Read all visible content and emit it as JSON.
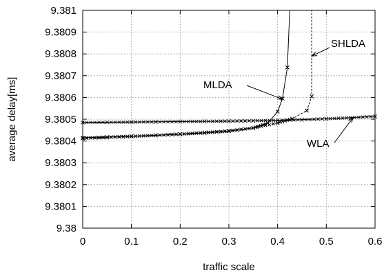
{
  "chart_data": {
    "type": "line",
    "title": "",
    "xlabel": "traffic scale",
    "ylabel": "average delay[ms]",
    "xlim": [
      0,
      0.6
    ],
    "ylim": [
      9.38,
      9.381
    ],
    "x_ticks": [
      0,
      0.1,
      0.2,
      0.3,
      0.4,
      0.5,
      0.6
    ],
    "x_tick_labels": [
      "0",
      "0.1",
      "0.2",
      "0.3",
      "0.4",
      "0.5",
      "0.6"
    ],
    "y_ticks": [
      9.38,
      9.3801,
      9.3802,
      9.3803,
      9.3804,
      9.3805,
      9.3806,
      9.3807,
      9.3808,
      9.3809,
      9.381
    ],
    "y_tick_labels": [
      "9.38",
      "9.3801",
      "9.3802",
      "9.3803",
      "9.3804",
      "9.3805",
      "9.3806",
      "9.3807",
      "9.3808",
      "9.3809",
      "9.381"
    ],
    "grid": true,
    "series": [
      {
        "name": "WLA",
        "line_style": "solid",
        "marker": "x",
        "color": "#000000",
        "x": [
          0,
          0.05,
          0.1,
          0.15,
          0.2,
          0.25,
          0.3,
          0.35,
          0.4,
          0.45,
          0.5,
          0.55,
          0.6
        ],
        "y": [
          9.380485,
          9.380486,
          9.380487,
          9.380488,
          9.380489,
          9.38049,
          9.380491,
          9.380493,
          9.380495,
          9.380498,
          9.380502,
          9.380507,
          9.380513
        ]
      },
      {
        "name": "MLDA",
        "line_style": "solid",
        "marker": "x",
        "color": "#000000",
        "x": [
          0,
          0.05,
          0.1,
          0.15,
          0.2,
          0.25,
          0.3,
          0.35,
          0.38,
          0.4,
          0.41,
          0.42,
          0.425
        ],
        "y": [
          9.380415,
          9.380418,
          9.380422,
          9.380426,
          9.380431,
          9.380437,
          9.380445,
          9.38046,
          9.380482,
          9.380535,
          9.380595,
          9.380738,
          9.381
        ]
      },
      {
        "name": "SHLDA",
        "line_style": "dashed",
        "marker": "x",
        "color": "#000000",
        "x": [
          0,
          0.05,
          0.1,
          0.15,
          0.2,
          0.25,
          0.3,
          0.35,
          0.4,
          0.43,
          0.46,
          0.47,
          0.47
        ],
        "y": [
          9.380412,
          9.380416,
          9.380421,
          9.380426,
          9.380432,
          9.380439,
          9.380447,
          9.38046,
          9.380483,
          9.380502,
          9.38054,
          9.380605,
          9.381
        ]
      }
    ],
    "annotations": [
      {
        "text": "SHLDA",
        "points_to": [
          0.47,
          9.38079
        ]
      },
      {
        "text": "MLDA",
        "points_to": [
          0.41,
          9.380592
        ]
      },
      {
        "text": "WLA",
        "points_to": [
          0.555,
          9.380508
        ]
      }
    ]
  }
}
